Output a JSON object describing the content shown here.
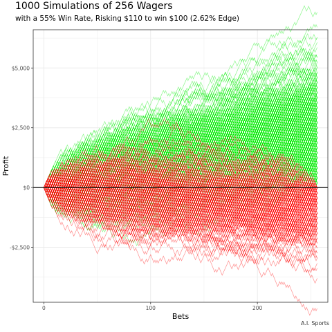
{
  "chart_data": {
    "type": "line",
    "title": "1000 Simulations of 256 Wagers",
    "subtitle": "with a 55% Win Rate, Risking $110 to win $100  (2.62% Edge)",
    "xlabel": "Bets",
    "ylabel": "Profit",
    "caption": "A.I. Sports",
    "xlim": [
      -10,
      266
    ],
    "ylim": [
      -4800,
      6600
    ],
    "x_ticks": [
      0,
      100,
      200
    ],
    "x_tick_labels": [
      "0",
      "100",
      "200"
    ],
    "y_ticks": [
      -2500,
      0,
      2500,
      5000
    ],
    "y_tick_labels": [
      "-$2,500",
      "$0",
      "$2,500",
      "$5,000"
    ],
    "simulation": {
      "n_simulations": 1000,
      "n_bets": 256,
      "win_rate": 0.55,
      "win_amount": 100,
      "risk_amount": 110,
      "edge_pct": 2.62
    },
    "reference_line_y": 0,
    "colors": {
      "profit_path": "#00ee00",
      "loss_path": "#ff0000",
      "reference_line": "#000000",
      "grid": "#ebebeb",
      "panel_border": "#333333"
    },
    "grid": true,
    "legend": "none"
  }
}
